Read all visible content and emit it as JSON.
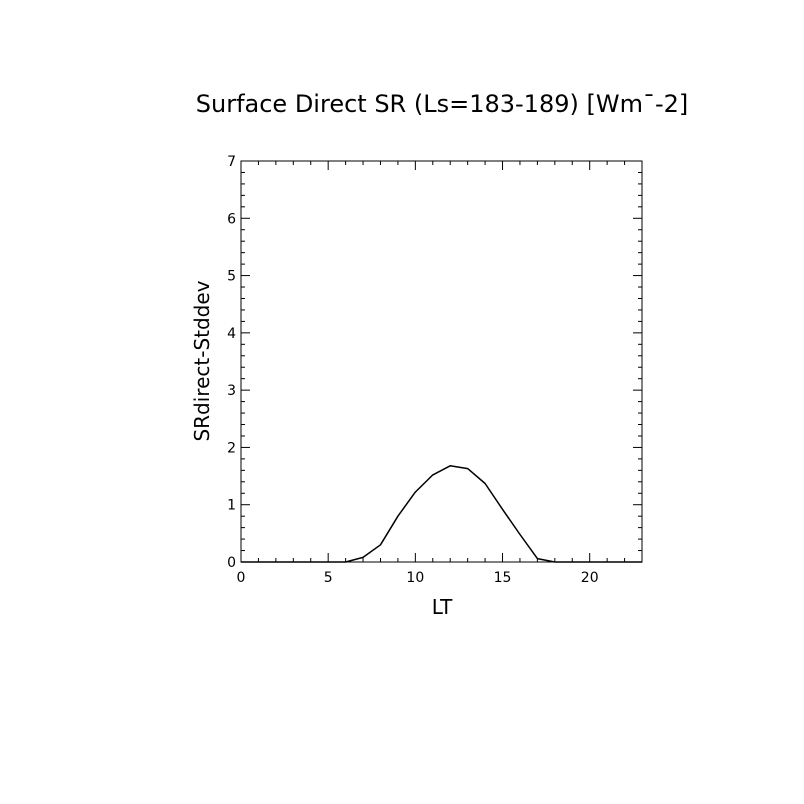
{
  "chart_data": {
    "type": "line",
    "title": "Surface Direct SR (Ls=183-189) [Wm¯-2]",
    "xlabel": "LT",
    "ylabel": "SRdirect-Stddev",
    "xlim": [
      0,
      23
    ],
    "ylim": [
      0,
      7
    ],
    "xticks": [
      0,
      5,
      10,
      15,
      20
    ],
    "yticks": [
      0,
      1,
      2,
      3,
      4,
      5,
      6,
      7
    ],
    "grid": false,
    "series": [
      {
        "x": [
          0,
          1,
          2,
          3,
          4,
          5,
          6,
          7,
          8,
          9,
          10,
          11,
          12,
          13,
          14,
          15,
          16,
          17,
          18,
          19,
          20,
          21,
          22,
          23
        ],
        "values": [
          0,
          0,
          0,
          0,
          0,
          0,
          0,
          0.08,
          0.3,
          0.8,
          1.22,
          1.52,
          1.68,
          1.63,
          1.37,
          0.92,
          0.48,
          0.06,
          0,
          0,
          0,
          0,
          0,
          0
        ]
      }
    ],
    "color": "#000000"
  }
}
